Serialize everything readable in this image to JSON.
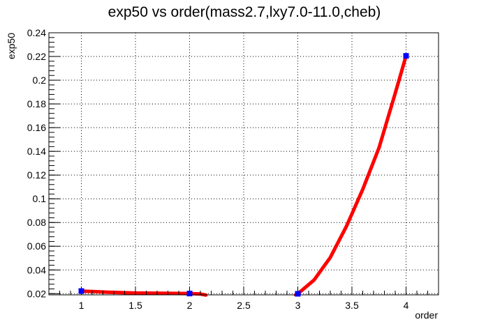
{
  "chart_data": {
    "type": "scatter",
    "title": "exp50 vs order(mass2.7,lxy7.0-11.0,cheb)",
    "xlabel": "order",
    "ylabel": "exp50",
    "xlim": [
      0.7,
      4.3
    ],
    "ylim": [
      0.019,
      0.24
    ],
    "grid": true,
    "x_ticks": [
      1,
      1.5,
      2,
      2.5,
      3,
      3.5,
      4
    ],
    "x_tick_labels": [
      "1",
      "1.5",
      "2",
      "2.5",
      "3",
      "3.5",
      "4"
    ],
    "y_ticks": [
      0.02,
      0.04,
      0.06,
      0.08,
      0.1,
      0.12,
      0.14,
      0.16,
      0.18,
      0.2,
      0.22,
      0.24
    ],
    "y_tick_labels": [
      "0.02",
      "0.04",
      "0.06",
      "0.08",
      "0.1",
      "0.12",
      "0.14",
      "0.16",
      "0.18",
      "0.2",
      "0.22",
      "0.24"
    ],
    "points": {
      "x": [
        1,
        2,
        3,
        4
      ],
      "y": [
        0.0222,
        0.0201,
        0.0199,
        0.2205
      ],
      "color": "#0000ff"
    },
    "curve": {
      "color": "#ff0000",
      "segments": [
        {
          "x": [
            1,
            1.25,
            1.5,
            1.75,
            2,
            2.1,
            2.15
          ],
          "y": [
            0.0222,
            0.0212,
            0.0205,
            0.0203,
            0.0201,
            0.0197,
            0.0188
          ]
        },
        {
          "x": [
            2.98,
            3,
            3.15,
            3.3,
            3.45,
            3.6,
            3.75,
            3.9,
            4
          ],
          "y": [
            0.019,
            0.0199,
            0.0315,
            0.0505,
            0.077,
            0.108,
            0.143,
            0.189,
            0.2205
          ]
        }
      ]
    }
  }
}
